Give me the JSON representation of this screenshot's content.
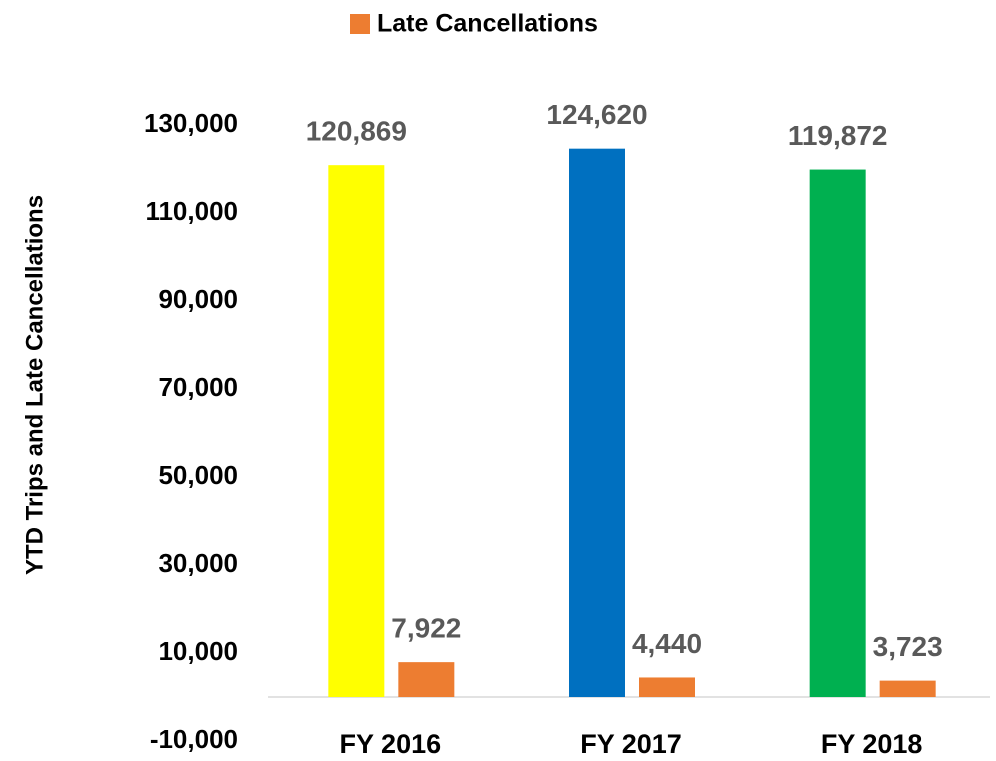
{
  "chart_data": {
    "type": "bar",
    "y_label": "YTD Trips and Late Cancellations",
    "categories": [
      "FY 2016",
      "FY 2017",
      "FY 2018"
    ],
    "series": [
      {
        "colors": [
          "#ffff00",
          "#0070c0",
          "#00b050"
        ],
        "values": [
          120869,
          124620,
          119872
        ],
        "value_labels": [
          "120,869",
          "124,620",
          "119,872"
        ]
      },
      {
        "name": "Late Cancellations",
        "color": "#ed7d31",
        "values": [
          7922,
          4440,
          3723
        ],
        "value_labels": [
          "7,922",
          "4,440",
          "3,723"
        ]
      }
    ],
    "ylim": [
      -10000,
      140000
    ],
    "yticks": [
      {
        "value": -10000,
        "label": "-10,000"
      },
      {
        "value": 10000,
        "label": "10,000"
      },
      {
        "value": 30000,
        "label": "30,000"
      },
      {
        "value": 50000,
        "label": "50,000"
      },
      {
        "value": 70000,
        "label": "70,000"
      },
      {
        "value": 90000,
        "label": "90,000"
      },
      {
        "value": 110000,
        "label": "110,000"
      },
      {
        "value": 130000,
        "label": "130,000"
      }
    ],
    "grid": false,
    "legend": "top"
  }
}
